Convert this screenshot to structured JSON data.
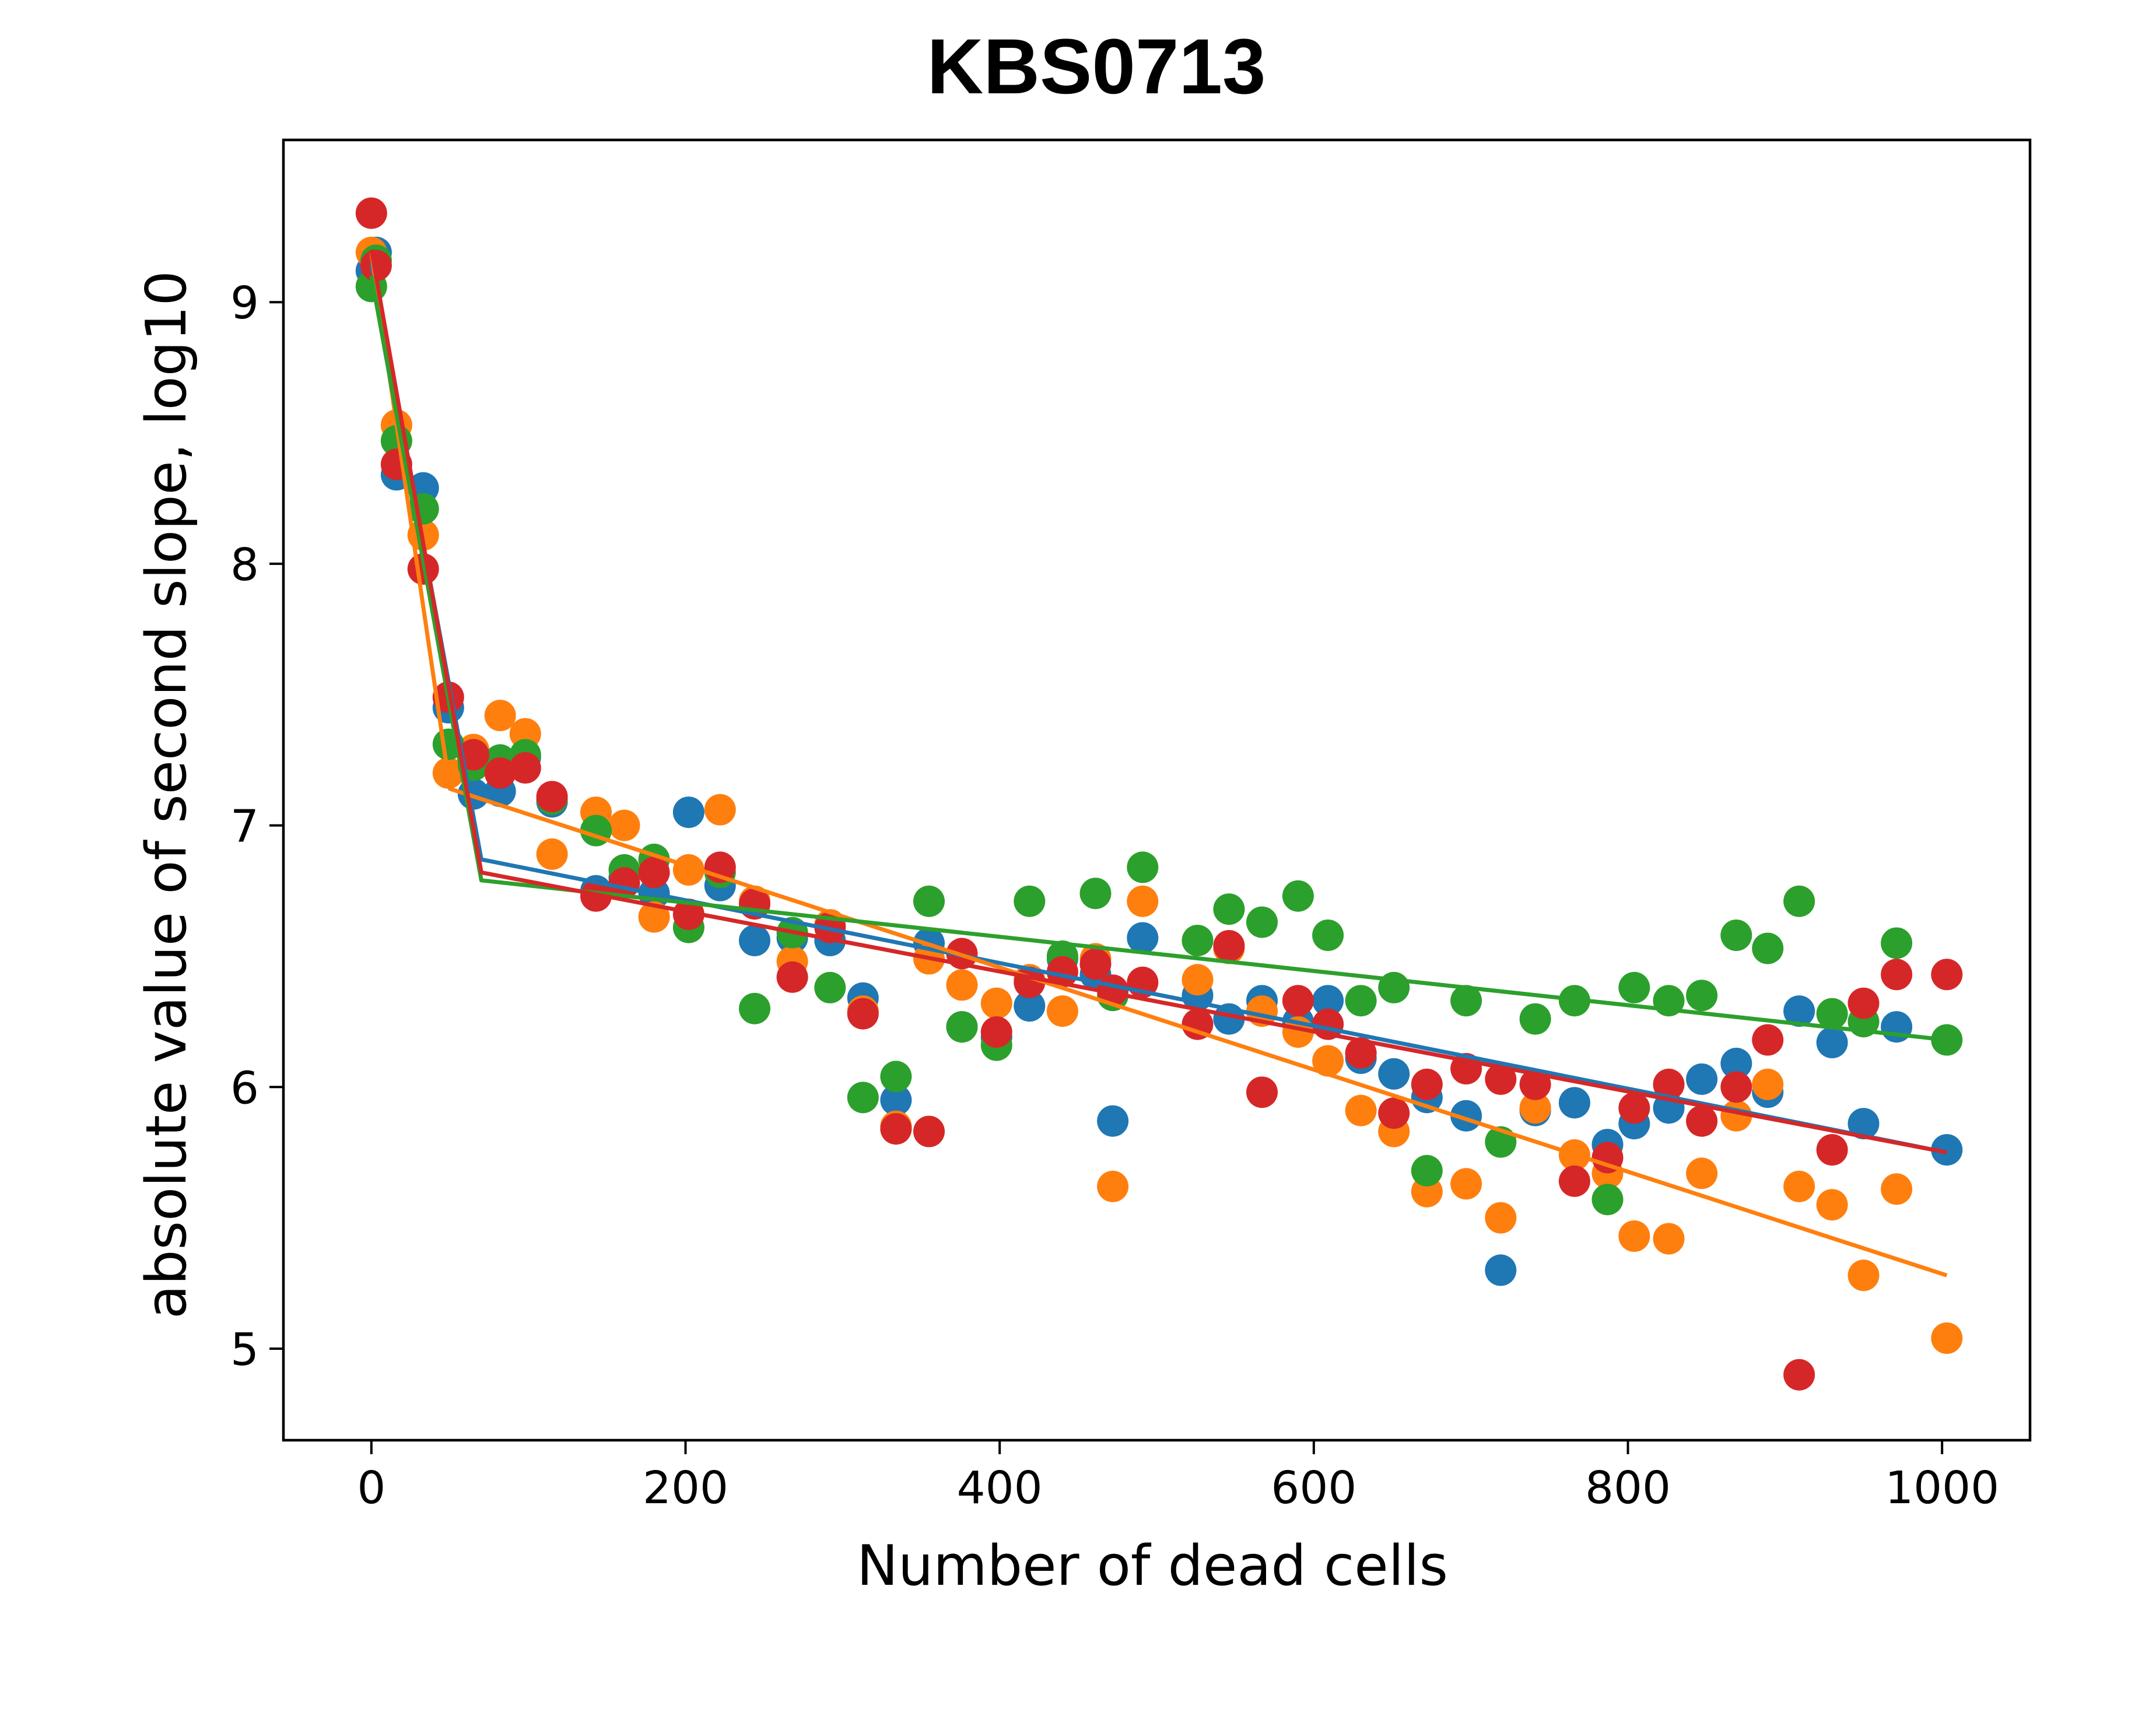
{
  "chart_data": {
    "type": "scatter",
    "title": "KBS0713",
    "xlabel": "Number of dead cells",
    "ylabel": "absolute value of second slope, log10",
    "xlim": [
      -56,
      1056
    ],
    "ylim": [
      4.65,
      9.62
    ],
    "xticks": [
      0,
      200,
      400,
      600,
      800,
      1000
    ],
    "yticks": [
      5,
      6,
      7,
      8,
      9
    ],
    "grid": false,
    "legend": "none",
    "series": [
      {
        "color": "#1f77b4",
        "points": [
          [
            0,
            9.12
          ],
          [
            3,
            9.19
          ],
          [
            16,
            8.34
          ],
          [
            33,
            8.29
          ],
          [
            49,
            7.45
          ],
          [
            65,
            7.12
          ],
          [
            82,
            7.13
          ],
          [
            98,
            7.26
          ],
          [
            115,
            7.09
          ],
          [
            143,
            6.75
          ],
          [
            161,
            6.8
          ],
          [
            180,
            6.74
          ],
          [
            202,
            7.05
          ],
          [
            222,
            6.77
          ],
          [
            244,
            6.56
          ],
          [
            268,
            6.57
          ],
          [
            292,
            6.56
          ],
          [
            313,
            6.34
          ],
          [
            334,
            5.95
          ],
          [
            355,
            6.55
          ],
          [
            376,
            6.23
          ],
          [
            398,
            6.19
          ],
          [
            419,
            6.31
          ],
          [
            440,
            6.49
          ],
          [
            461,
            6.43
          ],
          [
            472,
            5.87
          ],
          [
            491,
            6.57
          ],
          [
            526,
            6.35
          ],
          [
            546,
            6.26
          ],
          [
            567,
            6.33
          ],
          [
            590,
            6.25
          ],
          [
            609,
            6.33
          ],
          [
            630,
            6.11
          ],
          [
            651,
            6.05
          ],
          [
            672,
            5.96
          ],
          [
            697,
            5.89
          ],
          [
            719,
            5.3
          ],
          [
            741,
            5.91
          ],
          [
            766,
            5.94
          ],
          [
            787,
            5.78
          ],
          [
            804,
            5.86
          ],
          [
            826,
            5.92
          ],
          [
            847,
            6.03
          ],
          [
            869,
            6.09
          ],
          [
            889,
            5.98
          ],
          [
            909,
            6.29
          ],
          [
            930,
            6.17
          ],
          [
            950,
            5.86
          ],
          [
            971,
            6.23
          ],
          [
            1003,
            5.76
          ]
        ],
        "fit": [
          [
            0,
            9.15
          ],
          [
            70,
            6.87
          ],
          [
            1003,
            5.75
          ]
        ]
      },
      {
        "color": "#ff7f0e",
        "points": [
          [
            0,
            9.19
          ],
          [
            16,
            8.53
          ],
          [
            33,
            8.11
          ],
          [
            49,
            7.2
          ],
          [
            65,
            7.29
          ],
          [
            82,
            7.42
          ],
          [
            98,
            7.35
          ],
          [
            115,
            6.89
          ],
          [
            143,
            7.05
          ],
          [
            161,
            7.0
          ],
          [
            180,
            6.65
          ],
          [
            202,
            6.83
          ],
          [
            222,
            7.06
          ],
          [
            244,
            6.71
          ],
          [
            268,
            6.48
          ],
          [
            292,
            6.62
          ],
          [
            313,
            6.29
          ],
          [
            334,
            5.85
          ],
          [
            355,
            6.49
          ],
          [
            376,
            6.39
          ],
          [
            398,
            6.32
          ],
          [
            419,
            6.41
          ],
          [
            440,
            6.29
          ],
          [
            461,
            6.49
          ],
          [
            472,
            5.62
          ],
          [
            491,
            6.71
          ],
          [
            526,
            6.41
          ],
          [
            546,
            6.53
          ],
          [
            567,
            6.29
          ],
          [
            590,
            6.21
          ],
          [
            609,
            6.1
          ],
          [
            630,
            5.91
          ],
          [
            651,
            5.83
          ],
          [
            672,
            5.6
          ],
          [
            697,
            5.63
          ],
          [
            719,
            5.5
          ],
          [
            741,
            5.92
          ],
          [
            766,
            5.74
          ],
          [
            787,
            5.67
          ],
          [
            804,
            5.43
          ],
          [
            826,
            5.42
          ],
          [
            847,
            5.67
          ],
          [
            869,
            5.89
          ],
          [
            889,
            6.01
          ],
          [
            909,
            5.62
          ],
          [
            930,
            5.55
          ],
          [
            950,
            5.28
          ],
          [
            971,
            5.61
          ],
          [
            1003,
            5.04
          ]
        ],
        "fit": [
          [
            0,
            9.19
          ],
          [
            50,
            7.14
          ],
          [
            1003,
            5.28
          ]
        ]
      },
      {
        "color": "#2ca02c",
        "points": [
          [
            0,
            9.06
          ],
          [
            3,
            9.16
          ],
          [
            16,
            8.47
          ],
          [
            33,
            8.21
          ],
          [
            49,
            7.31
          ],
          [
            65,
            7.23
          ],
          [
            82,
            7.25
          ],
          [
            98,
            7.27
          ],
          [
            115,
            7.1
          ],
          [
            143,
            6.98
          ],
          [
            161,
            6.83
          ],
          [
            180,
            6.87
          ],
          [
            202,
            6.61
          ],
          [
            222,
            6.82
          ],
          [
            244,
            6.3
          ],
          [
            268,
            6.59
          ],
          [
            292,
            6.38
          ],
          [
            313,
            5.96
          ],
          [
            334,
            6.04
          ],
          [
            355,
            6.71
          ],
          [
            376,
            6.23
          ],
          [
            398,
            6.16
          ],
          [
            419,
            6.71
          ],
          [
            440,
            6.5
          ],
          [
            461,
            6.74
          ],
          [
            472,
            6.35
          ],
          [
            491,
            6.84
          ],
          [
            526,
            6.56
          ],
          [
            546,
            6.68
          ],
          [
            567,
            6.63
          ],
          [
            590,
            6.73
          ],
          [
            609,
            6.58
          ],
          [
            630,
            6.33
          ],
          [
            651,
            6.38
          ],
          [
            672,
            5.68
          ],
          [
            697,
            6.33
          ],
          [
            719,
            5.79
          ],
          [
            741,
            6.26
          ],
          [
            766,
            6.33
          ],
          [
            787,
            5.57
          ],
          [
            804,
            6.38
          ],
          [
            826,
            6.33
          ],
          [
            847,
            6.35
          ],
          [
            869,
            6.58
          ],
          [
            889,
            6.53
          ],
          [
            909,
            6.71
          ],
          [
            930,
            6.28
          ],
          [
            950,
            6.25
          ],
          [
            971,
            6.55
          ],
          [
            1003,
            6.18
          ]
        ],
        "fit": [
          [
            0,
            9.1
          ],
          [
            70,
            6.79
          ],
          [
            1003,
            6.18
          ]
        ]
      },
      {
        "color": "#d62728",
        "points": [
          [
            0,
            9.34
          ],
          [
            3,
            9.14
          ],
          [
            16,
            8.38
          ],
          [
            33,
            7.98
          ],
          [
            49,
            7.49
          ],
          [
            65,
            7.27
          ],
          [
            82,
            7.2
          ],
          [
            98,
            7.22
          ],
          [
            115,
            7.11
          ],
          [
            143,
            6.73
          ],
          [
            161,
            6.78
          ],
          [
            180,
            6.82
          ],
          [
            202,
            6.66
          ],
          [
            222,
            6.84
          ],
          [
            244,
            6.7
          ],
          [
            268,
            6.42
          ],
          [
            292,
            6.61
          ],
          [
            313,
            6.28
          ],
          [
            334,
            5.84
          ],
          [
            355,
            5.83
          ],
          [
            376,
            6.51
          ],
          [
            398,
            6.21
          ],
          [
            419,
            6.4
          ],
          [
            440,
            6.44
          ],
          [
            461,
            6.47
          ],
          [
            472,
            6.37
          ],
          [
            491,
            6.4
          ],
          [
            526,
            6.24
          ],
          [
            546,
            6.54
          ],
          [
            567,
            5.98
          ],
          [
            590,
            6.33
          ],
          [
            609,
            6.24
          ],
          [
            630,
            6.13
          ],
          [
            651,
            5.9
          ],
          [
            672,
            6.01
          ],
          [
            697,
            6.07
          ],
          [
            719,
            6.03
          ],
          [
            741,
            6.01
          ],
          [
            766,
            5.64
          ],
          [
            787,
            5.73
          ],
          [
            804,
            5.92
          ],
          [
            826,
            6.01
          ],
          [
            847,
            5.87
          ],
          [
            869,
            6.0
          ],
          [
            889,
            6.18
          ],
          [
            909,
            4.9
          ],
          [
            930,
            5.76
          ],
          [
            950,
            6.32
          ],
          [
            971,
            6.43
          ],
          [
            1003,
            6.43
          ]
        ],
        "fit": [
          [
            0,
            9.2
          ],
          [
            70,
            6.82
          ],
          [
            1003,
            5.75
          ]
        ]
      }
    ]
  }
}
